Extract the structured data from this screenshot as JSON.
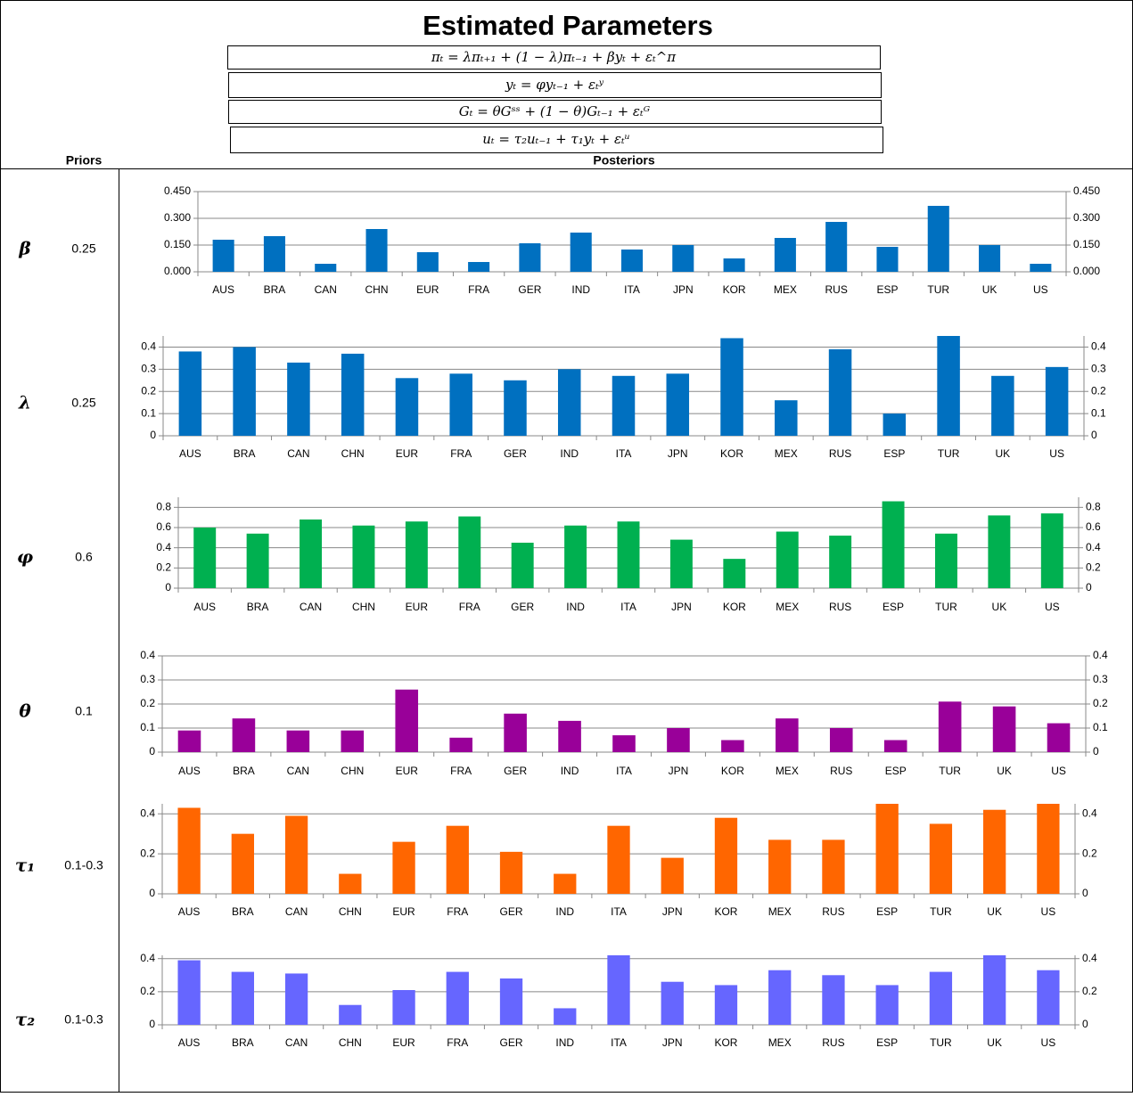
{
  "header": {
    "title": "Estimated Parameters",
    "equations": [
      "πₜ = λπₜ₊₁ + (1 − λ)πₜ₋₁ + βyₜ + εₜ^π",
      "yₜ = φyₜ₋₁ + εₜʸ",
      "Gₜ = θGˢˢ + (1 − θ)Gₜ₋₁ + εₜᴳ",
      "uₜ = τ₂uₜ₋₁ + τ₁yₜ + εₜᵘ"
    ],
    "priors_label": "Priors",
    "posteriors_label": "Posteriors"
  },
  "parameters": [
    {
      "symbol": "β",
      "prior": "0.25"
    },
    {
      "symbol": "λ",
      "prior": "0.25"
    },
    {
      "symbol": "φ",
      "prior": "0.6"
    },
    {
      "symbol": "θ",
      "prior": "0.1"
    },
    {
      "symbol": "τ₁",
      "prior": "0.1-0.3"
    },
    {
      "symbol": "τ₂",
      "prior": "0.1-0.3"
    }
  ],
  "chart_data": [
    {
      "type": "bar",
      "color": "#0070c0",
      "categories": [
        "AUS",
        "BRA",
        "CAN",
        "CHN",
        "EUR",
        "FRA",
        "GER",
        "IND",
        "ITA",
        "JPN",
        "KOR",
        "MEX",
        "RUS",
        "ESP",
        "TUR",
        "UK",
        "US"
      ],
      "values": [
        0.18,
        0.2,
        0.045,
        0.24,
        0.11,
        0.055,
        0.16,
        0.22,
        0.125,
        0.15,
        0.075,
        0.19,
        0.28,
        0.14,
        0.37,
        0.15,
        0.045
      ],
      "ylim": [
        0,
        0.45
      ],
      "yticks": [
        {
          "value": 0,
          "label": "0.000"
        },
        {
          "value": 0.15,
          "label": "0.150"
        },
        {
          "value": 0.3,
          "label": "0.300"
        },
        {
          "value": 0.45,
          "label": "0.450"
        }
      ],
      "grid": true
    },
    {
      "type": "bar",
      "color": "#0070c0",
      "categories": [
        "AUS",
        "BRA",
        "CAN",
        "CHN",
        "EUR",
        "FRA",
        "GER",
        "IND",
        "ITA",
        "JPN",
        "KOR",
        "MEX",
        "RUS",
        "ESP",
        "TUR",
        "UK",
        "US"
      ],
      "values": [
        0.38,
        0.4,
        0.33,
        0.37,
        0.26,
        0.28,
        0.25,
        0.3,
        0.27,
        0.28,
        0.44,
        0.16,
        0.39,
        0.1,
        0.45,
        0.27,
        0.31
      ],
      "ylim": [
        0,
        0.45
      ],
      "yticks": [
        0,
        0.1,
        0.2,
        0.3,
        0.4
      ],
      "grid": true
    },
    {
      "type": "bar",
      "color": "#00b050",
      "categories": [
        "AUS",
        "BRA",
        "CAN",
        "CHN",
        "EUR",
        "FRA",
        "GER",
        "IND",
        "ITA",
        "JPN",
        "KOR",
        "MEX",
        "RUS",
        "ESP",
        "TUR",
        "UK",
        "US"
      ],
      "values": [
        0.6,
        0.54,
        0.68,
        0.62,
        0.66,
        0.71,
        0.45,
        0.62,
        0.66,
        0.48,
        0.29,
        0.56,
        0.52,
        0.86,
        0.54,
        0.72,
        0.74
      ],
      "ylim": [
        0,
        0.9
      ],
      "yticks": [
        0,
        0.2,
        0.4,
        0.6,
        0.8
      ],
      "grid": true
    },
    {
      "type": "bar",
      "color": "#990099",
      "categories": [
        "AUS",
        "BRA",
        "CAN",
        "CHN",
        "EUR",
        "FRA",
        "GER",
        "IND",
        "ITA",
        "JPN",
        "KOR",
        "MEX",
        "RUS",
        "ESP",
        "TUR",
        "UK",
        "US"
      ],
      "values": [
        0.09,
        0.14,
        0.09,
        0.09,
        0.26,
        0.06,
        0.16,
        0.13,
        0.07,
        0.1,
        0.05,
        0.14,
        0.1,
        0.05,
        0.21,
        0.19,
        0.12
      ],
      "ylim": [
        0,
        0.4
      ],
      "yticks": [
        0,
        0.1,
        0.2,
        0.3,
        0.4
      ],
      "grid": true
    },
    {
      "type": "bar",
      "color": "#ff6600",
      "categories": [
        "AUS",
        "BRA",
        "CAN",
        "CHN",
        "EUR",
        "FRA",
        "GER",
        "IND",
        "ITA",
        "JPN",
        "KOR",
        "MEX",
        "RUS",
        "ESP",
        "TUR",
        "UK",
        "US"
      ],
      "values": [
        0.43,
        0.3,
        0.39,
        0.1,
        0.26,
        0.34,
        0.21,
        0.1,
        0.34,
        0.18,
        0.38,
        0.27,
        0.27,
        0.45,
        0.35,
        0.42,
        0.45
      ],
      "ylim": [
        0,
        0.45
      ],
      "yticks": [
        0,
        0.2,
        0.4
      ],
      "grid": true
    },
    {
      "type": "bar",
      "color": "#6666ff",
      "categories": [
        "AUS",
        "BRA",
        "CAN",
        "CHN",
        "EUR",
        "FRA",
        "GER",
        "IND",
        "ITA",
        "JPN",
        "KOR",
        "MEX",
        "RUS",
        "ESP",
        "TUR",
        "UK",
        "US"
      ],
      "values": [
        0.39,
        0.32,
        0.31,
        0.12,
        0.21,
        0.32,
        0.28,
        0.1,
        0.42,
        0.26,
        0.24,
        0.33,
        0.3,
        0.24,
        0.32,
        0.42,
        0.33
      ],
      "ylim": [
        0,
        0.42
      ],
      "yticks": [
        0,
        0.2,
        0.4
      ],
      "grid": true
    }
  ]
}
